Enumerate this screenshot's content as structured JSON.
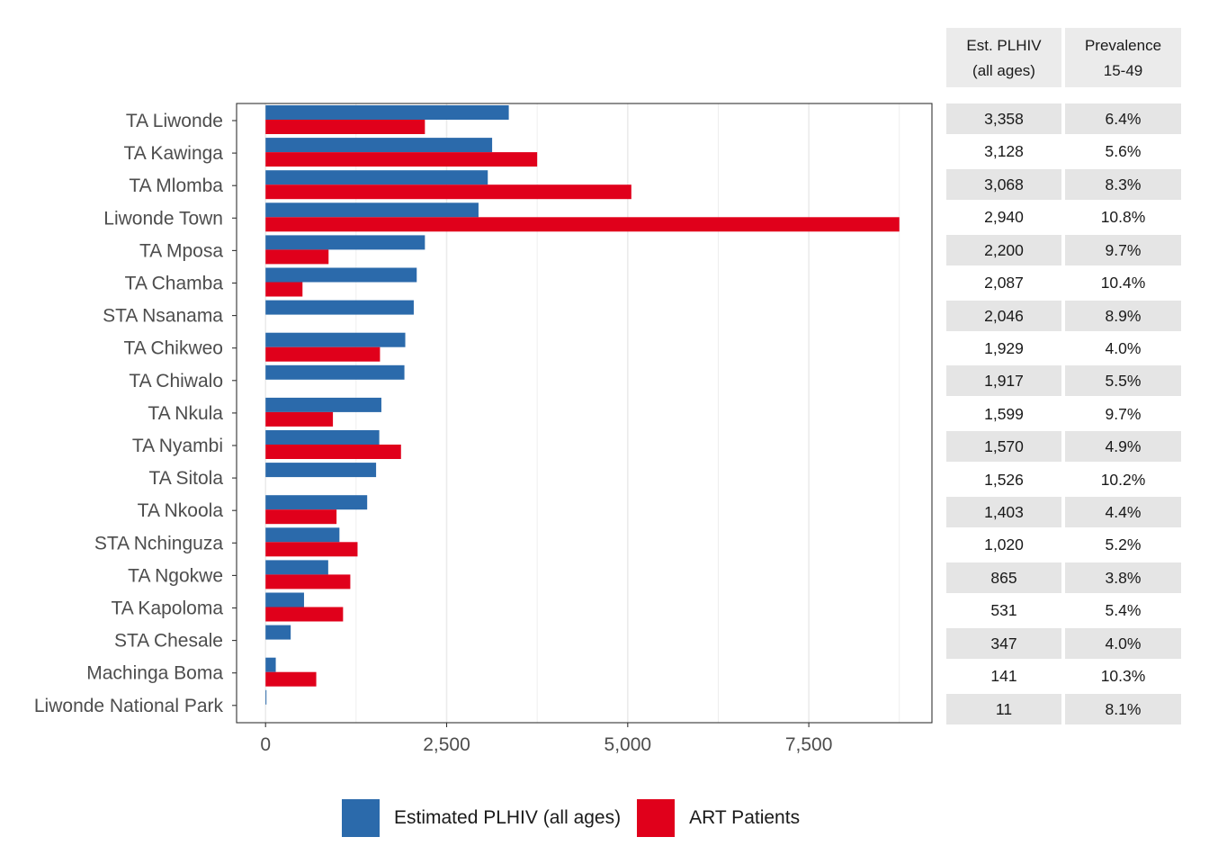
{
  "chart_data": {
    "type": "bar",
    "orientation": "horizontal",
    "categories": [
      "TA Liwonde",
      "TA Kawinga",
      "TA Mlomba",
      "Liwonde Town",
      "TA Mposa",
      "TA Chamba",
      "STA Nsanama",
      "TA Chikweo",
      "TA Chiwalo",
      "TA Nkula",
      "TA Nyambi",
      "TA Sitola",
      "TA Nkoola",
      "STA Nchinguza",
      "TA Ngokwe",
      "TA Kapoloma",
      "STA Chesale",
      "Machinga Boma",
      "Liwonde National Park"
    ],
    "series": [
      {
        "name": "Estimated PLHIV (all ages)",
        "color": "#2b6aab",
        "values": [
          3358,
          3128,
          3068,
          2940,
          2200,
          2087,
          2046,
          1929,
          1917,
          1599,
          1570,
          1526,
          1403,
          1020,
          865,
          531,
          347,
          141,
          11
        ]
      },
      {
        "name": "ART Patients",
        "color": "#e0001b",
        "values": [
          2200,
          3750,
          5050,
          8750,
          870,
          510,
          null,
          1580,
          null,
          930,
          1870,
          null,
          980,
          1270,
          1170,
          1070,
          null,
          700,
          null
        ]
      }
    ],
    "xlim": [
      -400,
      9200
    ],
    "xticks": [
      0,
      2500,
      5000,
      7500
    ],
    "xtick_labels": [
      "0",
      "2,500",
      "5,000",
      "7,500"
    ],
    "grid": true,
    "legend_position": "bottom",
    "xlabel": "",
    "ylabel": ""
  },
  "table": {
    "headers": [
      {
        "line1": "Est. PLHIV",
        "line2": "(all ages)"
      },
      {
        "line1": "Prevalence",
        "line2": "15-49"
      }
    ],
    "rows": [
      {
        "plhiv": "3,358",
        "prev": "6.4%"
      },
      {
        "plhiv": "3,128",
        "prev": "5.6%"
      },
      {
        "plhiv": "3,068",
        "prev": "8.3%"
      },
      {
        "plhiv": "2,940",
        "prev": "10.8%"
      },
      {
        "plhiv": "2,200",
        "prev": "9.7%"
      },
      {
        "plhiv": "2,087",
        "prev": "10.4%"
      },
      {
        "plhiv": "2,046",
        "prev": "8.9%"
      },
      {
        "plhiv": "1,929",
        "prev": "4.0%"
      },
      {
        "plhiv": "1,917",
        "prev": "5.5%"
      },
      {
        "plhiv": "1,599",
        "prev": "9.7%"
      },
      {
        "plhiv": "1,570",
        "prev": "4.9%"
      },
      {
        "plhiv": "1,526",
        "prev": "10.2%"
      },
      {
        "plhiv": "1,403",
        "prev": "4.4%"
      },
      {
        "plhiv": "1,020",
        "prev": "5.2%"
      },
      {
        "plhiv": "865",
        "prev": "3.8%"
      },
      {
        "plhiv": "531",
        "prev": "5.4%"
      },
      {
        "plhiv": "347",
        "prev": "4.0%"
      },
      {
        "plhiv": "141",
        "prev": "10.3%"
      },
      {
        "plhiv": "11",
        "prev": "8.1%"
      }
    ]
  },
  "legend": {
    "items": [
      {
        "label": "Estimated PLHIV (all ages)",
        "color": "#2b6aab"
      },
      {
        "label": "ART Patients",
        "color": "#e0001b"
      }
    ]
  }
}
